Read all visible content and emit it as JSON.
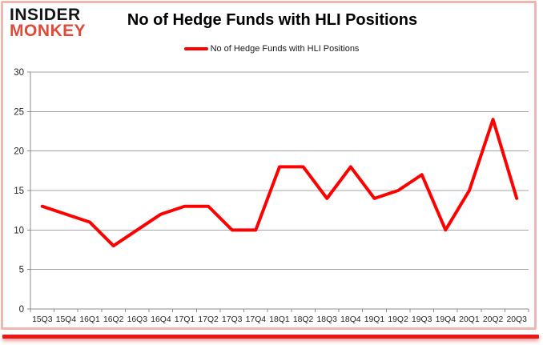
{
  "logo": {
    "line1": "INSIDER",
    "line2": "MONKEY"
  },
  "header": {
    "title": "No of Hedge Funds with HLI Positions"
  },
  "legend": {
    "label": "No of Hedge Funds with HLI Positions"
  },
  "colors": {
    "line_red": "#ff0000",
    "logo_black": "#141414",
    "logo_red": "#e04b38",
    "frame_border_pink": "#f0b6b0",
    "bottom_bar_red": "#ee1616",
    "grid_gray": "#a6a6a6",
    "axis_gray": "#8c8c8c",
    "label_color": "#262626"
  },
  "chart_data": {
    "type": "line",
    "title": "No of Hedge Funds with HLI Positions",
    "series_name": "No of Hedge Funds with HLI Positions",
    "categories": [
      "15Q3",
      "15Q4",
      "16Q1",
      "16Q2",
      "16Q3",
      "16Q4",
      "17Q1",
      "17Q2",
      "17Q3",
      "17Q4",
      "18Q1",
      "18Q2",
      "18Q3",
      "18Q4",
      "19Q1",
      "19Q2",
      "19Q3",
      "19Q4",
      "20Q1",
      "20Q2",
      "20Q3"
    ],
    "values": [
      13,
      12,
      11,
      8,
      10,
      12,
      13,
      13,
      10,
      10,
      18,
      18,
      14,
      18,
      14,
      15,
      17,
      10,
      15,
      24,
      14
    ],
    "xlabel": "",
    "ylabel": "",
    "ylim": [
      0,
      30
    ],
    "yticks": [
      0,
      5,
      10,
      15,
      20,
      25,
      30
    ],
    "grid": true,
    "legend_position": "top-center",
    "line_color": "#ff0000",
    "line_width": 4
  }
}
